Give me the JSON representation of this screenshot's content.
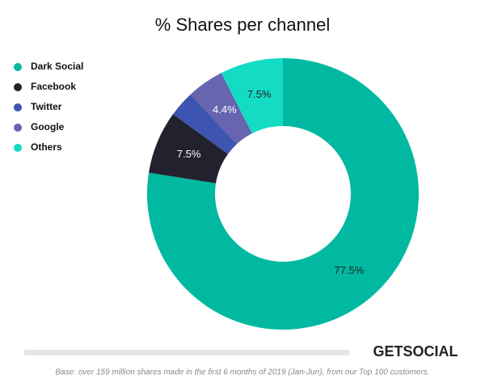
{
  "chart_data": {
    "type": "donut",
    "title": "% Shares per channel",
    "categories": [
      "Dark Social",
      "Facebook",
      "Twitter",
      "Google",
      "Others"
    ],
    "values": [
      77.5,
      7.5,
      3.1,
      4.4,
      7.5
    ],
    "value_labels": [
      "77.5%",
      "7.5%",
      null,
      "4.4%",
      "7.5%"
    ],
    "colors": [
      "#00b9a0",
      "#22222e",
      "#3d55b0",
      "#6764b0",
      "#14dcc4"
    ],
    "legend": "left"
  },
  "brand": "GETSOCIAL",
  "footnote": "Base: over 159 million shares made in the first 6 months of 2019 (Jan-Jun), from our Top 100 customers."
}
